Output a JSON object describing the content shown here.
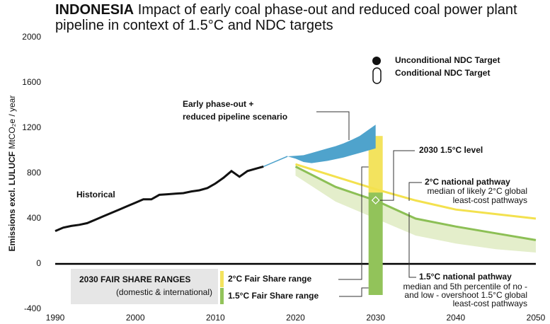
{
  "chart_data": {
    "type": "line",
    "title_prefix": "INDONESIA",
    "title": "Impact of early coal phase-out and reduced coal power plant pipeline in context of 1.5°C and NDC targets",
    "y_label_bold": "Emissions excl. LULUCF",
    "y_label": "MtCO₂e / year",
    "xlim": [
      1990,
      2050
    ],
    "ylim": [
      -400,
      2000
    ],
    "xticks": [
      1990,
      2000,
      2010,
      2020,
      2030,
      2040,
      2050
    ],
    "yticks": [
      -400,
      0,
      400,
      800,
      1200,
      1600,
      2000
    ],
    "historical": {
      "label": "Historical",
      "color": "#111111",
      "x": [
        1990,
        1991,
        1992,
        1993,
        1994,
        1995,
        1996,
        1997,
        1998,
        1999,
        2000,
        2001,
        2002,
        2003,
        2004,
        2005,
        2006,
        2007,
        2008,
        2009,
        2010,
        2011,
        2012,
        2013,
        2014,
        2015,
        2016
      ],
      "values": [
        290,
        320,
        335,
        345,
        360,
        390,
        420,
        450,
        480,
        510,
        540,
        570,
        570,
        610,
        615,
        620,
        625,
        640,
        650,
        670,
        710,
        760,
        820,
        770,
        820,
        840,
        860
      ]
    },
    "scenario": {
      "label_lines": [
        "Early phase-out +",
        "reduced pipeline scenario"
      ],
      "color": "#4fa3cc",
      "link_x": [
        2016,
        2019
      ],
      "link_values": [
        860,
        950
      ],
      "x": [
        2019,
        2020,
        2021,
        2022,
        2023,
        2024,
        2025,
        2026,
        2027,
        2028,
        2029,
        2030
      ],
      "lower": [
        950,
        930,
        900,
        890,
        900,
        910,
        925,
        940,
        960,
        980,
        1000,
        1020
      ],
      "upper": [
        950,
        955,
        960,
        980,
        1000,
        1020,
        1040,
        1065,
        1095,
        1130,
        1180,
        1230
      ]
    },
    "pathway_2c": {
      "label": "2°C national pathway",
      "note_lines": [
        "median of likely 2°C global",
        "least-cost pathways"
      ],
      "color": "#f3e14e",
      "label_color": "#9e9e80",
      "x": [
        2020,
        2025,
        2030,
        2035,
        2040,
        2045,
        2050
      ],
      "values": [
        880,
        770,
        660,
        560,
        480,
        440,
        400
      ]
    },
    "pathway_15c": {
      "label": "1.5°C national pathway",
      "note_lines": [
        "median and 5th percentile of no -",
        "and low - overshoot 1.5°C global",
        "least-cost pathways"
      ],
      "color": "#8cbf55",
      "band_color": "#e4eecb",
      "x": [
        2020,
        2025,
        2030,
        2035,
        2040,
        2045,
        2050
      ],
      "values": [
        860,
        680,
        560,
        400,
        330,
        270,
        210
      ],
      "low": [
        780,
        550,
        400,
        250,
        180,
        130,
        100
      ]
    },
    "level_2030": {
      "label": "2030 1.5°C level",
      "x": 2030,
      "value": 562
    },
    "fair_share": {
      "title": "2030 FAIR SHARE RANGES",
      "subtitle": "(domestic & international)",
      "ranges": [
        {
          "name": "2°C Fair Share range",
          "color": "#f3e35e",
          "label_color": "#9e9e80",
          "x": 2030,
          "range": [
            600,
            1130
          ]
        },
        {
          "name": "1.5°C Fair Share range",
          "color": "#92c35a",
          "label_color": "#8cbf55",
          "x": 2030,
          "range": [
            -275,
            630
          ]
        }
      ]
    },
    "legend": [
      {
        "name": "Unconditional NDC Target",
        "marker": "dot"
      },
      {
        "name": "Conditional NDC Target",
        "marker": "pill"
      }
    ]
  }
}
